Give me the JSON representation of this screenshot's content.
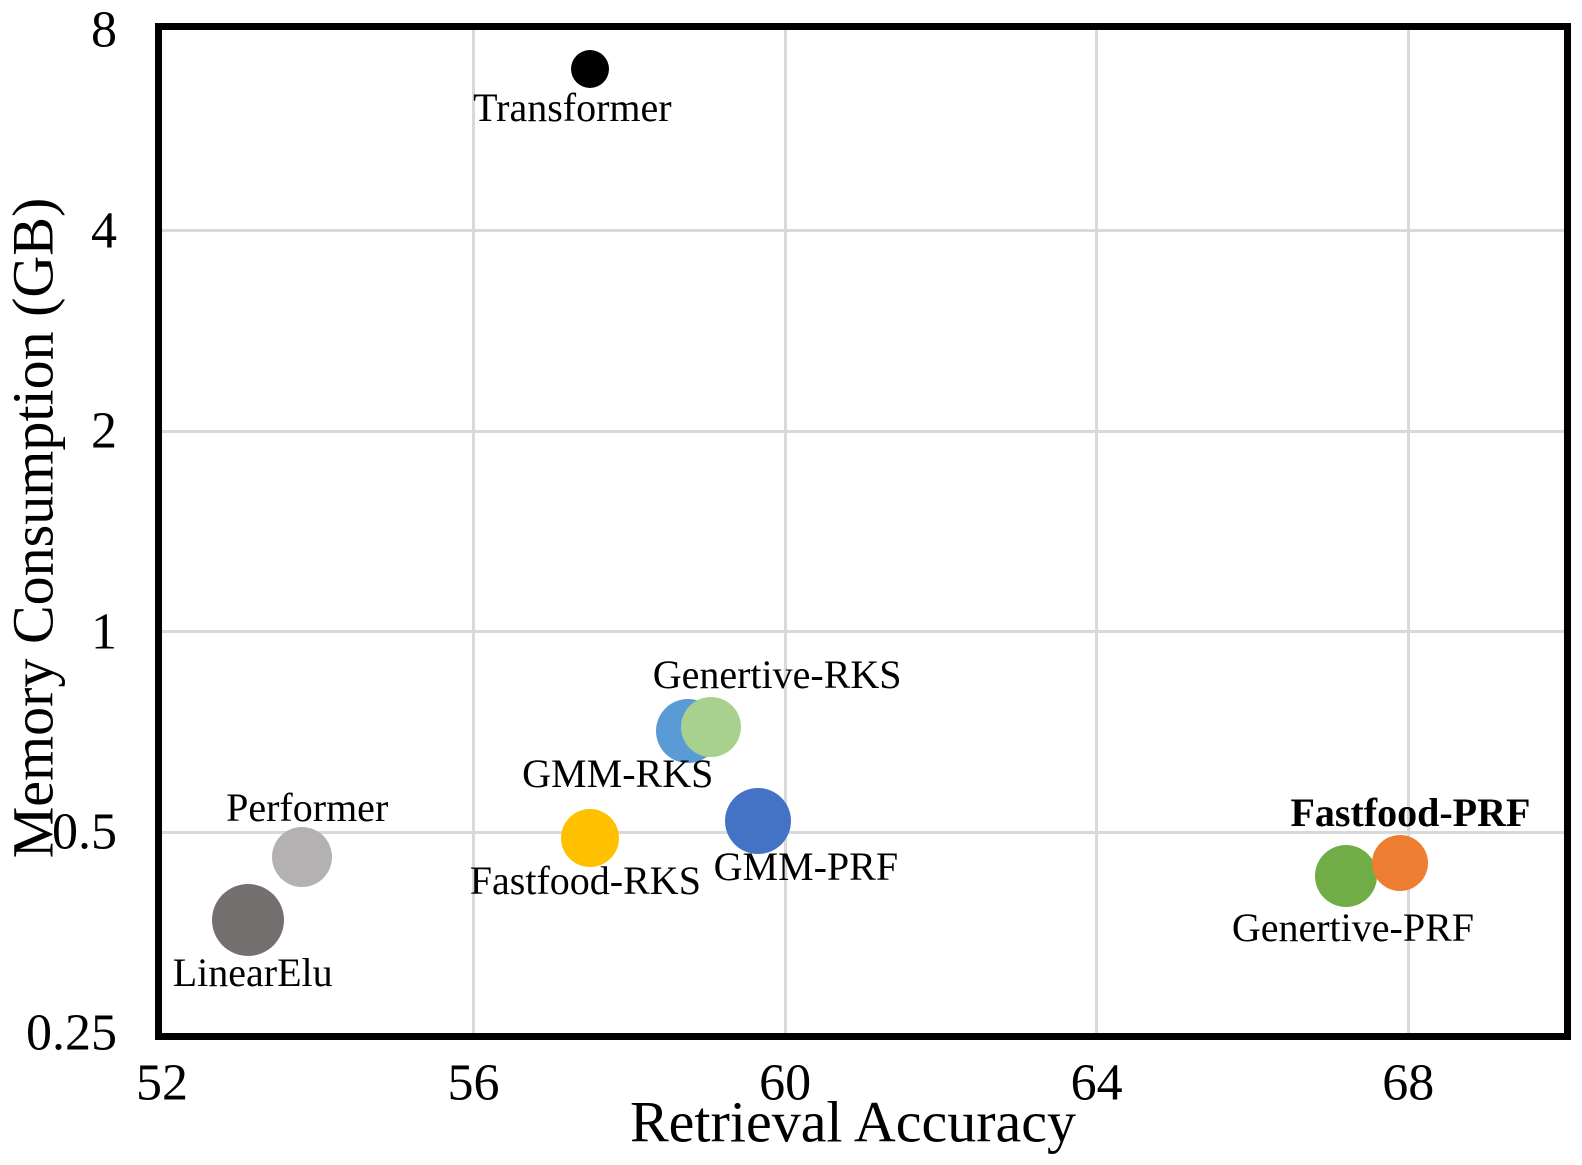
{
  "chart_data": {
    "type": "scatter",
    "title": "",
    "xlabel": "Retrieval Accuracy",
    "ylabel": "Memory Consumption (GB)",
    "xlim": [
      52,
      70
    ],
    "x_ticks": [
      "52",
      "56",
      "60",
      "64",
      "68"
    ],
    "y_scale": "log2",
    "ylim": [
      0.25,
      8
    ],
    "y_ticks": [
      "8",
      "4",
      "2",
      "1",
      "0.5",
      "0.25"
    ],
    "grid": true,
    "legend_position": "none",
    "series": [
      {
        "name": "Transformer",
        "x": 57.5,
        "y": 7.0,
        "color": "#000000",
        "marker_radius_px": 19,
        "label": {
          "text": "Transformer",
          "dx": -18,
          "dy": 39,
          "bold": false
        }
      },
      {
        "name": "Performer",
        "x": 53.8,
        "y": 0.46,
        "color": "#B3B1B1",
        "marker_radius_px": 30,
        "label": {
          "text": "Performer",
          "dx": 5,
          "dy": -49,
          "bold": false
        }
      },
      {
        "name": "LinearElu",
        "x": 53.1,
        "y": 0.37,
        "color": "#757070",
        "marker_radius_px": 36,
        "label": {
          "text": "LinearElu",
          "dx": 5,
          "dy": 53,
          "bold": false
        }
      },
      {
        "name": "GMM-RKS",
        "x": 58.75,
        "y": 0.71,
        "color": "#5B9BD5",
        "marker_radius_px": 32,
        "label": {
          "text": "GMM-RKS",
          "dx": -70,
          "dy": 43,
          "bold": false
        }
      },
      {
        "name": "Genertive-RKS",
        "x": 59.05,
        "y": 0.72,
        "color": "#A9D18E",
        "marker_radius_px": 30,
        "label": {
          "text": "Genertive-RKS",
          "dx": 66,
          "dy": -52,
          "bold": false
        }
      },
      {
        "name": "Fastfood-RKS",
        "x": 57.5,
        "y": 0.49,
        "color": "#FFC000",
        "marker_radius_px": 29,
        "label": {
          "text": "Fastfood-RKS",
          "dx": -5,
          "dy": 43,
          "bold": false
        }
      },
      {
        "name": "GMM-PRF",
        "x": 59.65,
        "y": 0.52,
        "color": "#4472C4",
        "marker_radius_px": 33,
        "label": {
          "text": "GMM-PRF",
          "dx": 48,
          "dy": 46,
          "bold": false
        }
      },
      {
        "name": "Genertive-PRF",
        "x": 67.2,
        "y": 0.43,
        "color": "#70AD47",
        "marker_radius_px": 31,
        "label": {
          "text": "Genertive-PRF",
          "dx": 7,
          "dy": 52,
          "bold": false
        }
      },
      {
        "name": "Fastfood-PRF",
        "x": 67.9,
        "y": 0.45,
        "color": "#ED7D31",
        "marker_radius_px": 28,
        "label": {
          "text": "Fastfood-PRF",
          "dx": 10,
          "dy": -50,
          "bold": true
        }
      }
    ],
    "colors": {
      "grid": "#D9D9D9",
      "axis": "#000000",
      "background": "#FFFFFF"
    }
  }
}
